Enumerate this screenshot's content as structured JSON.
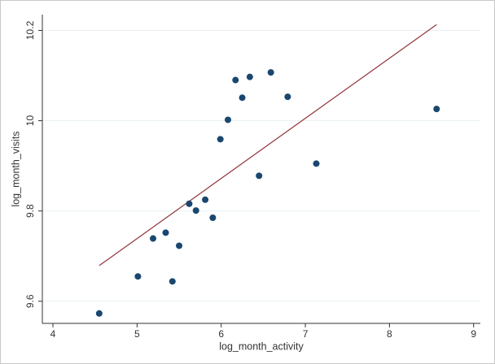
{
  "chart_data": {
    "type": "scatter",
    "x_label": "log_month_activity",
    "y_label": "log_month_visits",
    "x": [
      4.55,
      5.01,
      5.19,
      5.34,
      5.42,
      5.5,
      5.62,
      5.7,
      5.81,
      5.9,
      5.99,
      6.08,
      6.17,
      6.25,
      6.34,
      6.45,
      6.59,
      6.79,
      7.13,
      8.56
    ],
    "values": [
      9.573,
      9.655,
      9.739,
      9.752,
      9.644,
      9.723,
      9.816,
      9.801,
      9.825,
      9.785,
      9.959,
      10.002,
      10.09,
      10.051,
      10.097,
      9.878,
      10.107,
      10.053,
      9.905,
      10.026
    ],
    "color": "#1a476f",
    "fit": {
      "x": [
        4.55,
        8.56
      ],
      "values": [
        9.679,
        10.213
      ],
      "color": "#90353b"
    },
    "xlim": [
      3.874,
      9.08
    ],
    "ylim": [
      9.551,
      10.235
    ],
    "xticks": [
      4,
      5,
      6,
      7,
      8,
      9
    ],
    "yticks": [
      9.6,
      9.8,
      10,
      10.2
    ],
    "grid": true
  }
}
